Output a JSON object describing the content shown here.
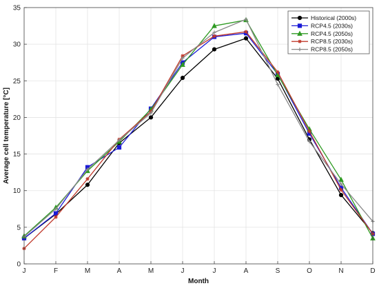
{
  "chart_data": {
    "type": "line",
    "title": "",
    "xlabel": "Month",
    "ylabel": "Average cell temperature [°C]",
    "categories": [
      "J",
      "F",
      "M",
      "A",
      "M",
      "J",
      "J",
      "A",
      "S",
      "O",
      "N",
      "D"
    ],
    "ylim": [
      0,
      35
    ],
    "yticks": [
      0,
      5,
      10,
      15,
      20,
      25,
      30,
      35
    ],
    "grid": true,
    "legend_position": "top-right",
    "series": [
      {
        "name": "Historical (2000s)",
        "color": "#000000",
        "marker": "circle",
        "values": [
          3.5,
          6.8,
          10.8,
          16.5,
          20.0,
          25.4,
          29.3,
          30.8,
          25.3,
          17.0,
          9.4,
          4.2
        ]
      },
      {
        "name": "RCP4.5 (2030s)",
        "color": "#1a1ad6",
        "marker": "square",
        "values": [
          3.5,
          6.9,
          13.2,
          15.9,
          21.2,
          27.5,
          31.0,
          31.5,
          25.9,
          17.8,
          10.4,
          4.1
        ]
      },
      {
        "name": "RCP4.5 (2050s)",
        "color": "#2e9a22",
        "marker": "triangle",
        "values": [
          3.8,
          7.7,
          12.7,
          16.7,
          21.1,
          27.2,
          32.5,
          33.3,
          25.8,
          18.4,
          11.5,
          3.5
        ]
      },
      {
        "name": "RCP8.5 (2030s)",
        "color": "#c0392b",
        "marker": "star",
        "values": [
          2.1,
          6.4,
          11.6,
          17.0,
          20.8,
          28.4,
          31.1,
          31.7,
          26.2,
          18.1,
          10.1,
          4.1
        ]
      },
      {
        "name": "RCP8.5 (2050s)",
        "color": "#888888",
        "marker": "plus",
        "values": [
          3.7,
          7.5,
          12.9,
          16.9,
          20.6,
          28.1,
          31.6,
          33.4,
          24.5,
          16.7,
          10.9,
          5.8
        ]
      }
    ]
  }
}
